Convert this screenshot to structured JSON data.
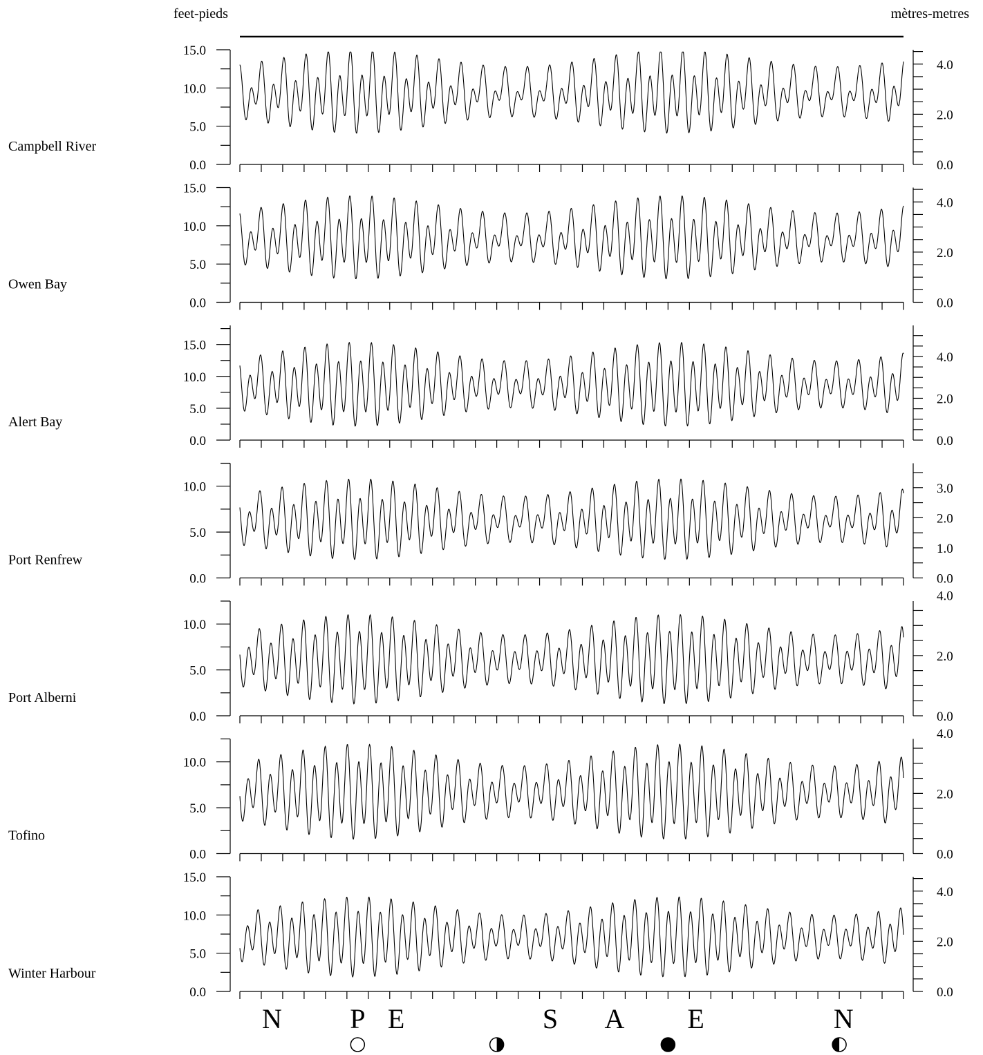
{
  "chart_data": {
    "type": "line",
    "left_unit_label": "feet-pieds",
    "right_unit_label": "mètres-metres",
    "days": 31,
    "stations": [
      {
        "name": "Campbell River",
        "ylim_ft": [
          0,
          15
        ],
        "left_ticks": [
          "0.0",
          "5.0",
          "10.0",
          "15.0"
        ],
        "right_ticks": [
          "0.0",
          "2.0",
          "4.0"
        ],
        "mean_ft": 9.3,
        "range_ft": 8.0,
        "diurnal": 0.5
      },
      {
        "name": "Owen Bay",
        "ylim_ft": [
          0,
          15
        ],
        "left_ticks": [
          "0.0",
          "5.0",
          "10.0",
          "15.0"
        ],
        "right_ticks": [
          "0.0",
          "2.0",
          "4.0"
        ],
        "mean_ft": 8.3,
        "range_ft": 8.2,
        "diurnal": 0.45
      },
      {
        "name": "Alert Bay",
        "ylim_ft": [
          0,
          18
        ],
        "left_ticks": [
          "0.0",
          "5.0",
          "10.0",
          "15.0"
        ],
        "right_ticks": [
          "0.0",
          "2.0",
          "4.0"
        ],
        "mean_ft": 8.6,
        "range_ft": 10.5,
        "diurnal": 0.35
      },
      {
        "name": "Port Renfrew",
        "ylim_ft": [
          0,
          12.5
        ],
        "left_ticks": [
          "0.0",
          "5.0",
          "10.0"
        ],
        "right_ticks": [
          "0.0",
          "1.0",
          "2.0",
          "3.0"
        ],
        "mean_ft": 6.3,
        "range_ft": 6.8,
        "diurnal": 0.4
      },
      {
        "name": "Port Alberni",
        "ylim_ft": [
          0,
          12.5
        ],
        "left_ticks": [
          "0.0",
          "5.0",
          "10.0"
        ],
        "right_ticks": [
          "0.0",
          "2.0",
          "4.0"
        ],
        "mean_ft": 6.1,
        "range_ft": 8.0,
        "diurnal": 0.3
      },
      {
        "name": "Tofino",
        "ylim_ft": [
          0,
          12.5
        ],
        "left_ticks": [
          "0.0",
          "5.0",
          "10.0"
        ],
        "right_ticks": [
          "0.0",
          "2.0",
          "4.0"
        ],
        "mean_ft": 6.7,
        "range_ft": 8.5,
        "diurnal": 0.3
      },
      {
        "name": "Winter Harbour",
        "ylim_ft": [
          0,
          15
        ],
        "left_ticks": [
          "0.0",
          "5.0",
          "10.0",
          "15.0"
        ],
        "right_ticks": [
          "0.0",
          "2.0",
          "4.0"
        ],
        "mean_ft": 7.1,
        "range_ft": 8.6,
        "diurnal": 0.3
      }
    ],
    "bottom_markers": [
      {
        "text": "N",
        "day": 1.5
      },
      {
        "text": "P",
        "day": 5.5
      },
      {
        "text": "E",
        "day": 7.3
      },
      {
        "text": "S",
        "day": 14.5
      },
      {
        "text": "A",
        "day": 17.5
      },
      {
        "text": "E",
        "day": 21.3
      },
      {
        "text": "N",
        "day": 28.2
      }
    ],
    "moon_phases": [
      {
        "phase": "full-moon",
        "day": 5.5
      },
      {
        "phase": "last-quarter",
        "day": 12.0
      },
      {
        "phase": "new-moon",
        "day": 20.0
      },
      {
        "phase": "first-quarter",
        "day": 28.0
      }
    ]
  }
}
